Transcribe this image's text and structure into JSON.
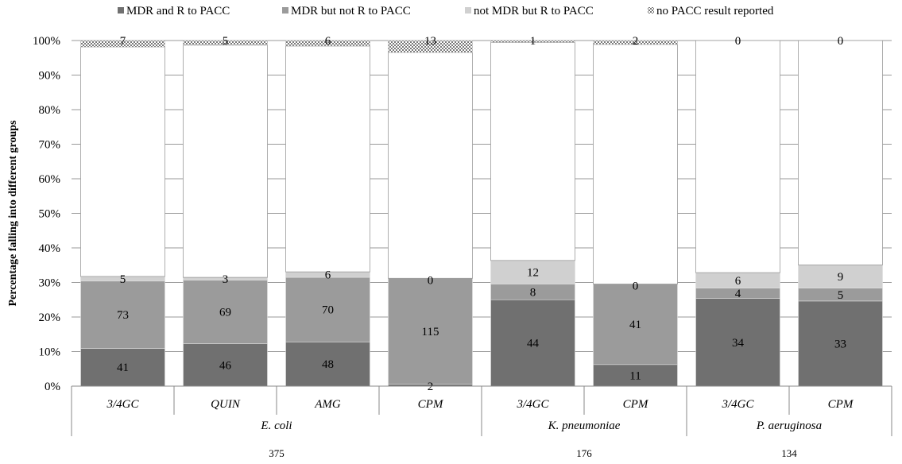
{
  "chart_data": {
    "type": "bar",
    "stacked": true,
    "normalized": true,
    "categories": [
      "3/4GC",
      "QUIN",
      "AMG",
      "CPM",
      "3/4GC",
      "CPM",
      "3/4GC",
      "CPM"
    ],
    "groups": [
      {
        "name": "E. coli",
        "total": "375",
        "span": 4
      },
      {
        "name": "K. pneumoniae",
        "total": "176",
        "span": 2
      },
      {
        "name": "P. aeruginosa",
        "total": "134",
        "span": 2
      }
    ],
    "series": [
      {
        "name": "MDR and R to PACC",
        "color": "#707070",
        "values": [
          41,
          46,
          48,
          2,
          44,
          11,
          34,
          33
        ]
      },
      {
        "name": "MDR but not R to PACC",
        "color": "#9b9b9b",
        "values": [
          73,
          69,
          70,
          115,
          8,
          41,
          4,
          5
        ]
      },
      {
        "name": "not MDR but R to PACC",
        "color": "#d0d0d0",
        "values": [
          5,
          3,
          6,
          0,
          12,
          0,
          6,
          9
        ]
      },
      {
        "name": "no PACC result reported",
        "color": "checker",
        "values": [
          7,
          5,
          6,
          13,
          1,
          2,
          0,
          0
        ]
      }
    ],
    "bar_totals": [
      375,
      375,
      375,
      375,
      176,
      176,
      134,
      134
    ],
    "ylabel": "Percentage falling into different groups",
    "ylim": [
      0,
      100
    ],
    "yticks": [
      "0%",
      "10%",
      "20%",
      "30%",
      "40%",
      "50%",
      "60%",
      "70%",
      "80%",
      "90%",
      "100%"
    ],
    "grid": true,
    "legend_position": "top",
    "remainder_color": "#ffffff"
  }
}
